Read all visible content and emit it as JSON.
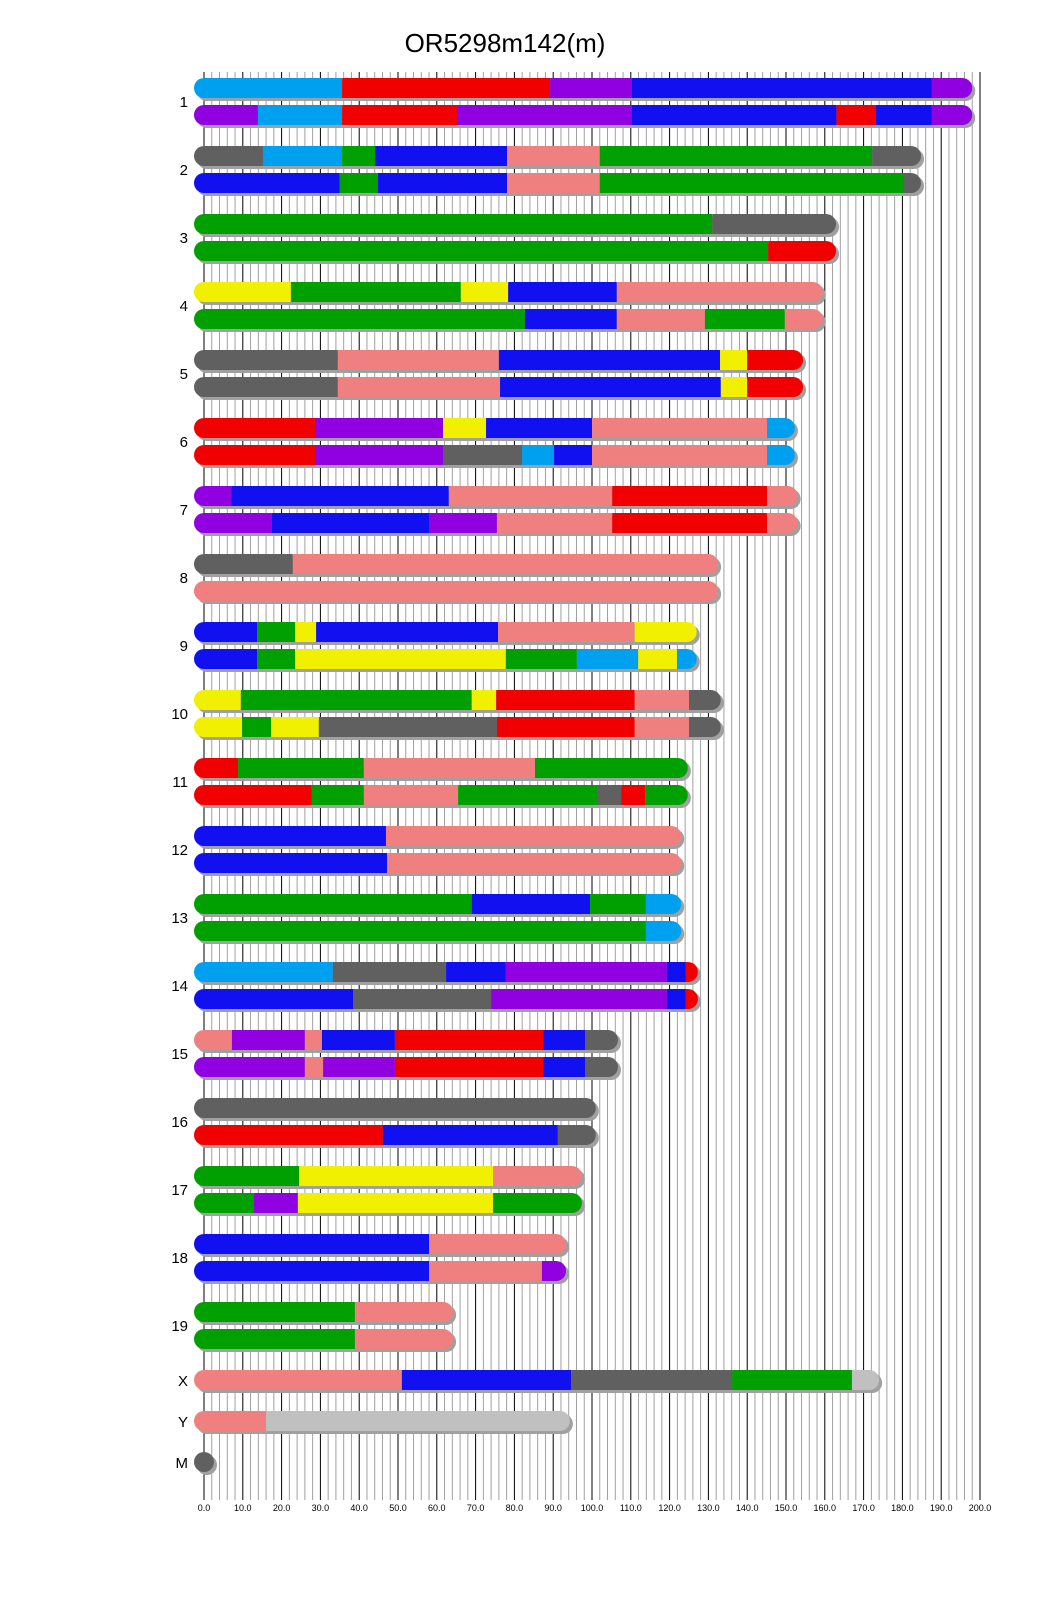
{
  "chart_data": {
    "type": "chromosome-mosaic",
    "title": "OR5298m142(m)",
    "xlim": [
      0,
      200
    ],
    "x_ticks": [
      "0.0",
      "10.0",
      "20.0",
      "30.0",
      "40.0",
      "50.0",
      "60.0",
      "70.0",
      "80.0",
      "90.0",
      "100.0",
      "110.0",
      "120.0",
      "130.0",
      "140.0",
      "150.0",
      "160.0",
      "170.0",
      "180.0",
      "190.0",
      "200.0"
    ],
    "grid": "minor every 2, major every 10",
    "colors": {
      "lightblue": "#00A0F0",
      "red": "#F00000",
      "purple": "#9000E0",
      "blue": "#1010F0",
      "salmon": "#F08080",
      "green": "#00A000",
      "gray": "#606060",
      "yellow": "#F0F000",
      "lightgray": "#C0C0C0"
    },
    "chromosomes": [
      {
        "label": "1",
        "haplotypes": [
          [
            [
              0,
              35.6,
              "lightblue"
            ],
            [
              35.6,
              89.2,
              "red"
            ],
            [
              89.2,
              110.3,
              "purple"
            ],
            [
              110.3,
              187.6,
              "blue"
            ],
            [
              187.6,
              198,
              "purple"
            ]
          ],
          [
            [
              0,
              13.9,
              "purple"
            ],
            [
              13.9,
              35.6,
              "lightblue"
            ],
            [
              35.6,
              65.2,
              "red"
            ],
            [
              65.2,
              110.3,
              "purple"
            ],
            [
              110.3,
              163,
              "blue"
            ],
            [
              163,
              173.2,
              "red"
            ],
            [
              173.2,
              187.6,
              "blue"
            ],
            [
              187.6,
              198,
              "purple"
            ]
          ]
        ]
      },
      {
        "label": "2",
        "haplotypes": [
          [
            [
              0,
              15.2,
              "gray"
            ],
            [
              15.2,
              35.6,
              "lightblue"
            ],
            [
              35.6,
              44.1,
              "green"
            ],
            [
              44.1,
              78.1,
              "blue"
            ],
            [
              78.1,
              102,
              "salmon"
            ],
            [
              102,
              172.2,
              "green"
            ],
            [
              172.2,
              184.8,
              "gray"
            ]
          ],
          [
            [
              0,
              35,
              "blue"
            ],
            [
              35,
              44.8,
              "green"
            ],
            [
              44.8,
              78.1,
              "blue"
            ],
            [
              78.1,
              102,
              "salmon"
            ],
            [
              102,
              180.4,
              "green"
            ],
            [
              180.4,
              184.8,
              "gray"
            ]
          ]
        ]
      },
      {
        "label": "3",
        "haplotypes": [
          [
            [
              0,
              131,
              "green"
            ],
            [
              131,
              162.9,
              "gray"
            ]
          ],
          [
            [
              0,
              145.4,
              "green"
            ],
            [
              145.4,
              162.9,
              "red"
            ]
          ]
        ]
      },
      {
        "label": "4",
        "haplotypes": [
          [
            [
              0,
              22.4,
              "yellow"
            ],
            [
              22.4,
              66.2,
              "green"
            ],
            [
              66.2,
              78.4,
              "yellow"
            ],
            [
              78.4,
              106.4,
              "blue"
            ],
            [
              106.4,
              159.5,
              "salmon"
            ]
          ],
          [
            [
              0,
              82.7,
              "green"
            ],
            [
              82.7,
              106.4,
              "blue"
            ],
            [
              106.4,
              129.1,
              "salmon"
            ],
            [
              129.1,
              149.7,
              "green"
            ],
            [
              149.7,
              159.5,
              "salmon"
            ]
          ]
        ]
      },
      {
        "label": "5",
        "haplotypes": [
          [
            [
              0,
              34.5,
              "gray"
            ],
            [
              34.5,
              76,
              "salmon"
            ],
            [
              76,
              133,
              "blue"
            ],
            [
              133,
              140,
              "yellow"
            ],
            [
              140,
              154.4,
              "red"
            ]
          ],
          [
            [
              0,
              34.5,
              "gray"
            ],
            [
              34.5,
              76.3,
              "salmon"
            ],
            [
              76.3,
              133.2,
              "blue"
            ],
            [
              133.2,
              140,
              "yellow"
            ],
            [
              140,
              154.4,
              "red"
            ]
          ]
        ]
      },
      {
        "label": "6",
        "haplotypes": [
          [
            [
              0,
              28.6,
              "red"
            ],
            [
              28.6,
              61.6,
              "purple"
            ],
            [
              61.6,
              72.7,
              "yellow"
            ],
            [
              72.7,
              100,
              "blue"
            ],
            [
              100,
              145.1,
              "salmon"
            ],
            [
              145.1,
              152.3,
              "lightblue"
            ]
          ],
          [
            [
              0,
              28.6,
              "red"
            ],
            [
              28.6,
              61.6,
              "purple"
            ],
            [
              61.6,
              82,
              "gray"
            ],
            [
              82,
              90.2,
              "lightblue"
            ],
            [
              90.2,
              100,
              "blue"
            ],
            [
              100,
              145.1,
              "salmon"
            ],
            [
              145.1,
              152.3,
              "lightblue"
            ]
          ]
        ]
      },
      {
        "label": "7",
        "haplotypes": [
          [
            [
              0,
              7,
              "purple"
            ],
            [
              7,
              63.1,
              "blue"
            ],
            [
              63.1,
              105.2,
              "salmon"
            ],
            [
              105.2,
              145.1,
              "red"
            ],
            [
              145.1,
              153,
              "salmon"
            ]
          ],
          [
            [
              0,
              17.5,
              "purple"
            ],
            [
              17.5,
              58,
              "blue"
            ],
            [
              58,
              75.5,
              "purple"
            ],
            [
              75.5,
              105.2,
              "salmon"
            ],
            [
              105.2,
              145.1,
              "red"
            ],
            [
              145.1,
              153,
              "salmon"
            ]
          ]
        ]
      },
      {
        "label": "8",
        "haplotypes": [
          [
            [
              0,
              22.9,
              "gray"
            ],
            [
              22.9,
              132.5,
              "salmon"
            ]
          ],
          [
            [
              0,
              132.5,
              "salmon"
            ]
          ]
        ]
      },
      {
        "label": "9",
        "haplotypes": [
          [
            [
              0,
              13.7,
              "blue"
            ],
            [
              13.7,
              23.5,
              "green"
            ],
            [
              23.5,
              28.9,
              "yellow"
            ],
            [
              28.9,
              75.8,
              "blue"
            ],
            [
              75.8,
              111,
              "salmon"
            ],
            [
              111,
              127,
              "yellow"
            ]
          ],
          [
            [
              0,
              13.7,
              "blue"
            ],
            [
              13.7,
              23.5,
              "green"
            ],
            [
              23.5,
              77.8,
              "yellow"
            ],
            [
              77.8,
              96.1,
              "green"
            ],
            [
              96.1,
              111.9,
              "lightblue"
            ],
            [
              111.9,
              121.9,
              "yellow"
            ],
            [
              121.9,
              127,
              "lightblue"
            ]
          ]
        ]
      },
      {
        "label": "10",
        "haplotypes": [
          [
            [
              0,
              9.5,
              "yellow"
            ],
            [
              9.5,
              69,
              "green"
            ],
            [
              69,
              75.3,
              "yellow"
            ],
            [
              75.3,
              111,
              "red"
            ],
            [
              111,
              125,
              "salmon"
            ],
            [
              125,
              133.2,
              "gray"
            ]
          ],
          [
            [
              0,
              9.8,
              "yellow"
            ],
            [
              9.8,
              17.3,
              "green"
            ],
            [
              17.3,
              29.6,
              "yellow"
            ],
            [
              29.6,
              75.5,
              "gray"
            ],
            [
              75.5,
              111,
              "red"
            ],
            [
              111,
              125,
              "salmon"
            ],
            [
              125,
              133.2,
              "gray"
            ]
          ]
        ]
      },
      {
        "label": "11",
        "haplotypes": [
          [
            [
              0,
              8.8,
              "red"
            ],
            [
              8.8,
              41.2,
              "green"
            ],
            [
              41.2,
              85.3,
              "salmon"
            ],
            [
              85.3,
              124.7,
              "green"
            ]
          ],
          [
            [
              0,
              27.8,
              "red"
            ],
            [
              27.8,
              41.2,
              "green"
            ],
            [
              41.2,
              65.5,
              "salmon"
            ],
            [
              65.5,
              101.3,
              "green"
            ],
            [
              101.3,
              107.5,
              "gray"
            ],
            [
              107.5,
              113.7,
              "red"
            ],
            [
              113.7,
              124.7,
              "green"
            ]
          ]
        ]
      },
      {
        "label": "12",
        "haplotypes": [
          [
            [
              0,
              46.9,
              "blue"
            ],
            [
              46.9,
              123,
              "salmon"
            ]
          ],
          [
            [
              0,
              47.2,
              "blue"
            ],
            [
              47.2,
              123,
              "salmon"
            ]
          ]
        ]
      },
      {
        "label": "13",
        "haplotypes": [
          [
            [
              0,
              69,
              "green"
            ],
            [
              69,
              99.5,
              "blue"
            ],
            [
              99.5,
              113.9,
              "green"
            ],
            [
              113.9,
              123,
              "lightblue"
            ]
          ],
          [
            [
              0,
              113.9,
              "green"
            ],
            [
              113.9,
              123,
              "lightblue"
            ]
          ]
        ]
      },
      {
        "label": "14",
        "haplotypes": [
          [
            [
              0,
              33.2,
              "lightblue"
            ],
            [
              33.2,
              62.4,
              "gray"
            ],
            [
              62.4,
              77.8,
              "blue"
            ],
            [
              77.8,
              119.3,
              "purple"
            ],
            [
              119.3,
              124.2,
              "blue"
            ],
            [
              124.2,
              127.3,
              "red"
            ]
          ],
          [
            [
              0,
              38.4,
              "blue"
            ],
            [
              38.4,
              74,
              "gray"
            ],
            [
              74,
              119.3,
              "purple"
            ],
            [
              119.3,
              124.2,
              "blue"
            ],
            [
              124.2,
              127.3,
              "red"
            ]
          ]
        ]
      },
      {
        "label": "15",
        "haplotypes": [
          [
            [
              0,
              7.2,
              "salmon"
            ],
            [
              7.2,
              26,
              "purple"
            ],
            [
              26,
              30.4,
              "salmon"
            ],
            [
              30.4,
              49.2,
              "blue"
            ],
            [
              49.2,
              87.4,
              "red"
            ],
            [
              87.4,
              98.2,
              "blue"
            ],
            [
              98.2,
              106.7,
              "gray"
            ]
          ],
          [
            [
              0,
              26,
              "purple"
            ],
            [
              26,
              30.7,
              "salmon"
            ],
            [
              30.7,
              49.2,
              "purple"
            ],
            [
              49.2,
              87.4,
              "red"
            ],
            [
              87.4,
              98.2,
              "blue"
            ],
            [
              98.2,
              106.7,
              "gray"
            ]
          ]
        ]
      },
      {
        "label": "16",
        "haplotypes": [
          [
            [
              0,
              101,
              "gray"
            ]
          ],
          [
            [
              0,
              46.1,
              "red"
            ],
            [
              46.1,
              91.2,
              "blue"
            ],
            [
              91.2,
              101,
              "gray"
            ]
          ]
        ]
      },
      {
        "label": "17",
        "haplotypes": [
          [
            [
              0,
              24.5,
              "green"
            ],
            [
              24.5,
              74.5,
              "yellow"
            ],
            [
              74.5,
              97.4,
              "salmon"
            ]
          ],
          [
            [
              0,
              12.9,
              "green"
            ],
            [
              12.9,
              24.2,
              "purple"
            ],
            [
              24.2,
              74.5,
              "yellow"
            ],
            [
              74.5,
              97.4,
              "green"
            ]
          ]
        ]
      },
      {
        "label": "18",
        "haplotypes": [
          [
            [
              0,
              58,
              "blue"
            ],
            [
              58,
              93.3,
              "salmon"
            ]
          ],
          [
            [
              0,
              58,
              "blue"
            ],
            [
              58,
              87.1,
              "salmon"
            ],
            [
              87.1,
              93.3,
              "purple"
            ]
          ]
        ]
      },
      {
        "label": "19",
        "haplotypes": [
          [
            [
              0,
              38.9,
              "green"
            ],
            [
              38.9,
              64.2,
              "salmon"
            ]
          ],
          [
            [
              0,
              38.9,
              "green"
            ],
            [
              38.9,
              64.2,
              "salmon"
            ]
          ]
        ]
      },
      {
        "label": "X",
        "haplotypes": [
          [
            [
              0,
              51,
              "salmon"
            ],
            [
              51,
              94.6,
              "blue"
            ],
            [
              94.6,
              136.1,
              "gray"
            ],
            [
              136.1,
              167,
              "green"
            ],
            [
              167,
              174,
              "lightgray"
            ]
          ]
        ]
      },
      {
        "label": "Y",
        "haplotypes": [
          [
            [
              0,
              16,
              "salmon"
            ],
            [
              16,
              94.3,
              "lightgray"
            ]
          ]
        ]
      },
      {
        "label": "M",
        "haplotypes": [
          [
            [
              0,
              0.02,
              "gray"
            ]
          ]
        ]
      }
    ]
  }
}
